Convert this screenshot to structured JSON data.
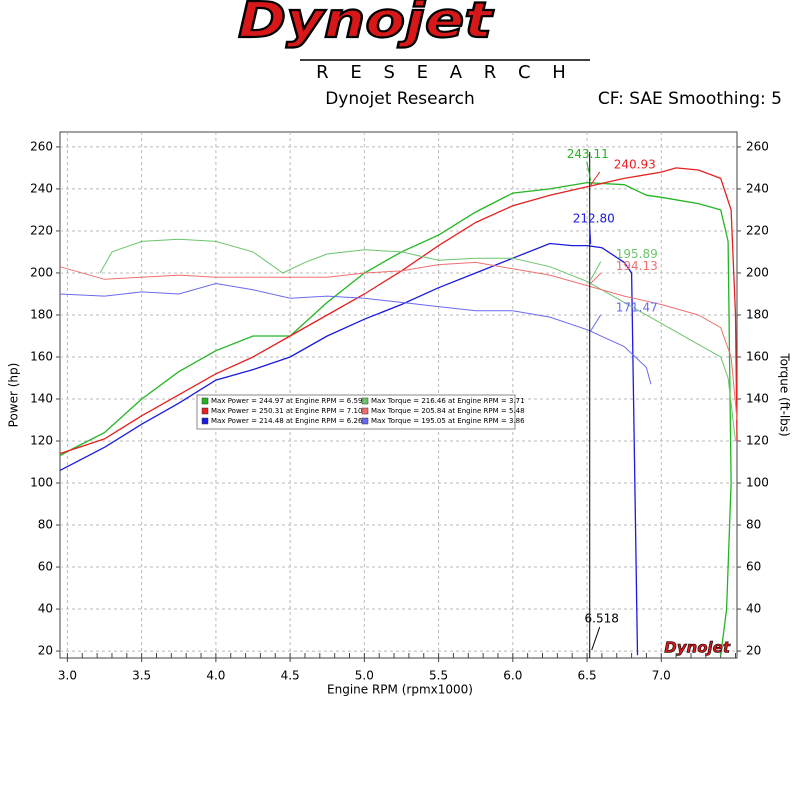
{
  "header": {
    "logo": "Dynojet",
    "logo_sub": "R E S E A R C H",
    "company": "Dynojet Research",
    "settings": "CF: SAE Smoothing: 5"
  },
  "chart_data": {
    "type": "line",
    "xlabel": "Engine RPM (rpmx1000)",
    "ylabel": "Power (hp)",
    "y2label": "Torque (ft-lbs)",
    "xlim": [
      2.95,
      7.51
    ],
    "ylim": [
      16.7,
      267.1
    ],
    "y2lim": [
      16.7,
      267.1
    ],
    "xticks": [
      {
        "value": 3.0,
        "label": "3.0"
      },
      {
        "value": 3.5,
        "label": "3.5"
      },
      {
        "value": 4.0,
        "label": "4.0"
      },
      {
        "value": 4.5,
        "label": "4.5"
      },
      {
        "value": 5.0,
        "label": "5.0"
      },
      {
        "value": 5.5,
        "label": "5.5"
      },
      {
        "value": 6.0,
        "label": "6.0"
      },
      {
        "value": 6.5,
        "label": "6.5"
      },
      {
        "value": 7.0,
        "label": "7.0"
      }
    ],
    "yticks": [
      20,
      40,
      60,
      80,
      100,
      120,
      140,
      160,
      180,
      200,
      220,
      240,
      260
    ],
    "y2ticks": [
      20,
      40,
      60,
      80,
      100,
      120,
      140,
      160,
      180,
      200,
      220,
      240,
      260
    ],
    "grid": true,
    "series": [
      {
        "name": "Max Power = 244.97 at Engine RPM = 6.59",
        "color": "#22b522",
        "x": [
          2.95,
          3.0,
          3.25,
          3.5,
          3.75,
          4.0,
          4.25,
          4.5,
          4.75,
          5.0,
          5.25,
          5.5,
          5.75,
          6.0,
          6.25,
          6.5,
          6.75,
          6.9,
          7.0,
          7.25,
          7.4,
          7.45,
          7.47,
          7.44,
          7.4
        ],
        "values": [
          113,
          115,
          124,
          140,
          153,
          163,
          170,
          170,
          186,
          200,
          210,
          218,
          229,
          238,
          240,
          243,
          242,
          237,
          236,
          233,
          230,
          215,
          100,
          40,
          18
        ]
      },
      {
        "name": "Max Power = 250.31 at Engine RPM = 7.10",
        "color": "#e82020",
        "x": [
          2.95,
          3.25,
          3.5,
          3.75,
          4.0,
          4.25,
          4.5,
          4.75,
          5.0,
          5.25,
          5.5,
          5.75,
          6.0,
          6.25,
          6.5,
          6.75,
          7.0,
          7.1,
          7.25,
          7.4,
          7.47,
          7.5,
          7.51
        ],
        "values": [
          114,
          121,
          132,
          142,
          152,
          160,
          170,
          180,
          190,
          201,
          213,
          224,
          232,
          237,
          241,
          245,
          248,
          250,
          249,
          245,
          230,
          180,
          120
        ]
      },
      {
        "name": "Max Power = 214.48 at Engine RPM = 6.26",
        "color": "#1a1ae0",
        "x": [
          2.95,
          3.25,
          3.5,
          3.75,
          4.0,
          4.25,
          4.5,
          4.75,
          5.0,
          5.25,
          5.5,
          5.75,
          6.0,
          6.25,
          6.4,
          6.5,
          6.6,
          6.75,
          6.8,
          6.84
        ],
        "values": [
          106,
          117,
          128,
          138,
          149,
          154,
          160,
          170,
          178,
          185,
          193,
          200,
          207,
          214,
          213,
          213,
          212,
          205,
          200,
          18
        ]
      },
      {
        "name": "Max Torque = 216.46 at Engine RPM = 3.71",
        "color": "#6cc46c",
        "axis": "y2",
        "x": [
          3.22,
          3.3,
          3.5,
          3.75,
          4.0,
          4.25,
          4.45,
          4.6,
          4.75,
          5.0,
          5.25,
          5.5,
          5.75,
          6.0,
          6.25,
          6.5,
          6.75,
          7.0,
          7.25,
          7.4,
          7.45,
          7.5
        ],
        "values": [
          200,
          210,
          215,
          216,
          215,
          210,
          200,
          205,
          209,
          211,
          210,
          206,
          207,
          207,
          203,
          196,
          186,
          176,
          166,
          160,
          150,
          120
        ]
      },
      {
        "name": "Max Torque = 205.84 at Engine RPM = 5.48",
        "color": "#f07070",
        "axis": "y2",
        "x": [
          2.95,
          3.0,
          3.25,
          3.5,
          3.75,
          4.0,
          4.25,
          4.5,
          4.75,
          5.0,
          5.25,
          5.5,
          5.75,
          6.0,
          6.25,
          6.5,
          6.75,
          7.0,
          7.25,
          7.4,
          7.47,
          7.51
        ],
        "values": [
          203,
          202,
          197,
          198,
          199,
          198,
          198,
          198,
          198,
          200,
          201,
          204,
          205,
          202,
          199,
          194,
          189,
          185,
          180,
          174,
          160,
          130
        ]
      },
      {
        "name": "Max Torque = 195.05 at Engine RPM = 3.86",
        "color": "#6a6af0",
        "axis": "y2",
        "x": [
          2.95,
          3.25,
          3.5,
          3.75,
          4.0,
          4.25,
          4.5,
          4.75,
          5.0,
          5.25,
          5.5,
          5.75,
          6.0,
          6.25,
          6.5,
          6.75,
          6.9,
          6.93
        ],
        "values": [
          190,
          189,
          191,
          190,
          195,
          192,
          188,
          189,
          188,
          186,
          184,
          182,
          182,
          179,
          173,
          165,
          155,
          147
        ]
      }
    ],
    "cursor": {
      "x": 6.518,
      "label": "6.518",
      "readouts": [
        {
          "label": "243.11",
          "value": 243.11,
          "color": "#22b522"
        },
        {
          "label": "240.93",
          "value": 240.93,
          "color": "#e82020"
        },
        {
          "label": "212.80",
          "value": 212.8,
          "color": "#1a1ae0"
        },
        {
          "label": "195.89",
          "value": 195.89,
          "color": "#6cc46c"
        },
        {
          "label": "194.13",
          "value": 194.13,
          "color": "#f07070"
        },
        {
          "label": "171.47",
          "value": 171.47,
          "color": "#6a6af0"
        }
      ]
    },
    "watermark": "Dynojet"
  }
}
